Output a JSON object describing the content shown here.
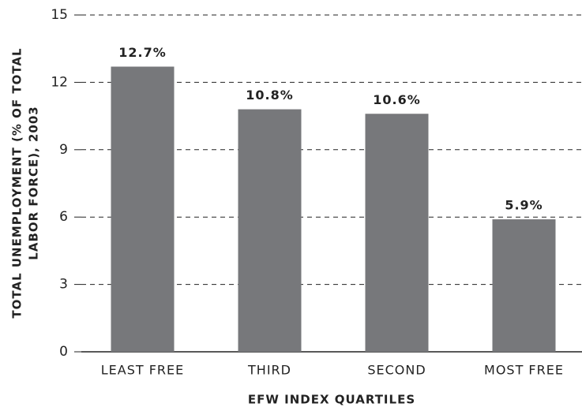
{
  "chart_data": {
    "type": "bar",
    "ylabel": [
      "TOTAL UNEMPLOYMENT (% OF TOTAL",
      "LABOR FORCE), 2003"
    ],
    "xlabel": "EFW INDEX QUARTILES",
    "categories": [
      "LEAST FREE",
      "THIRD",
      "SECOND",
      "MOST FREE"
    ],
    "values": [
      12.7,
      10.8,
      10.6,
      5.9
    ],
    "value_labels": [
      "12.7%",
      "10.8%",
      "10.6%",
      "5.9%"
    ],
    "color": "#77787b",
    "ylim": [
      0,
      15
    ],
    "yticks": [
      0,
      3,
      6,
      9,
      12,
      15
    ],
    "grid": true
  }
}
